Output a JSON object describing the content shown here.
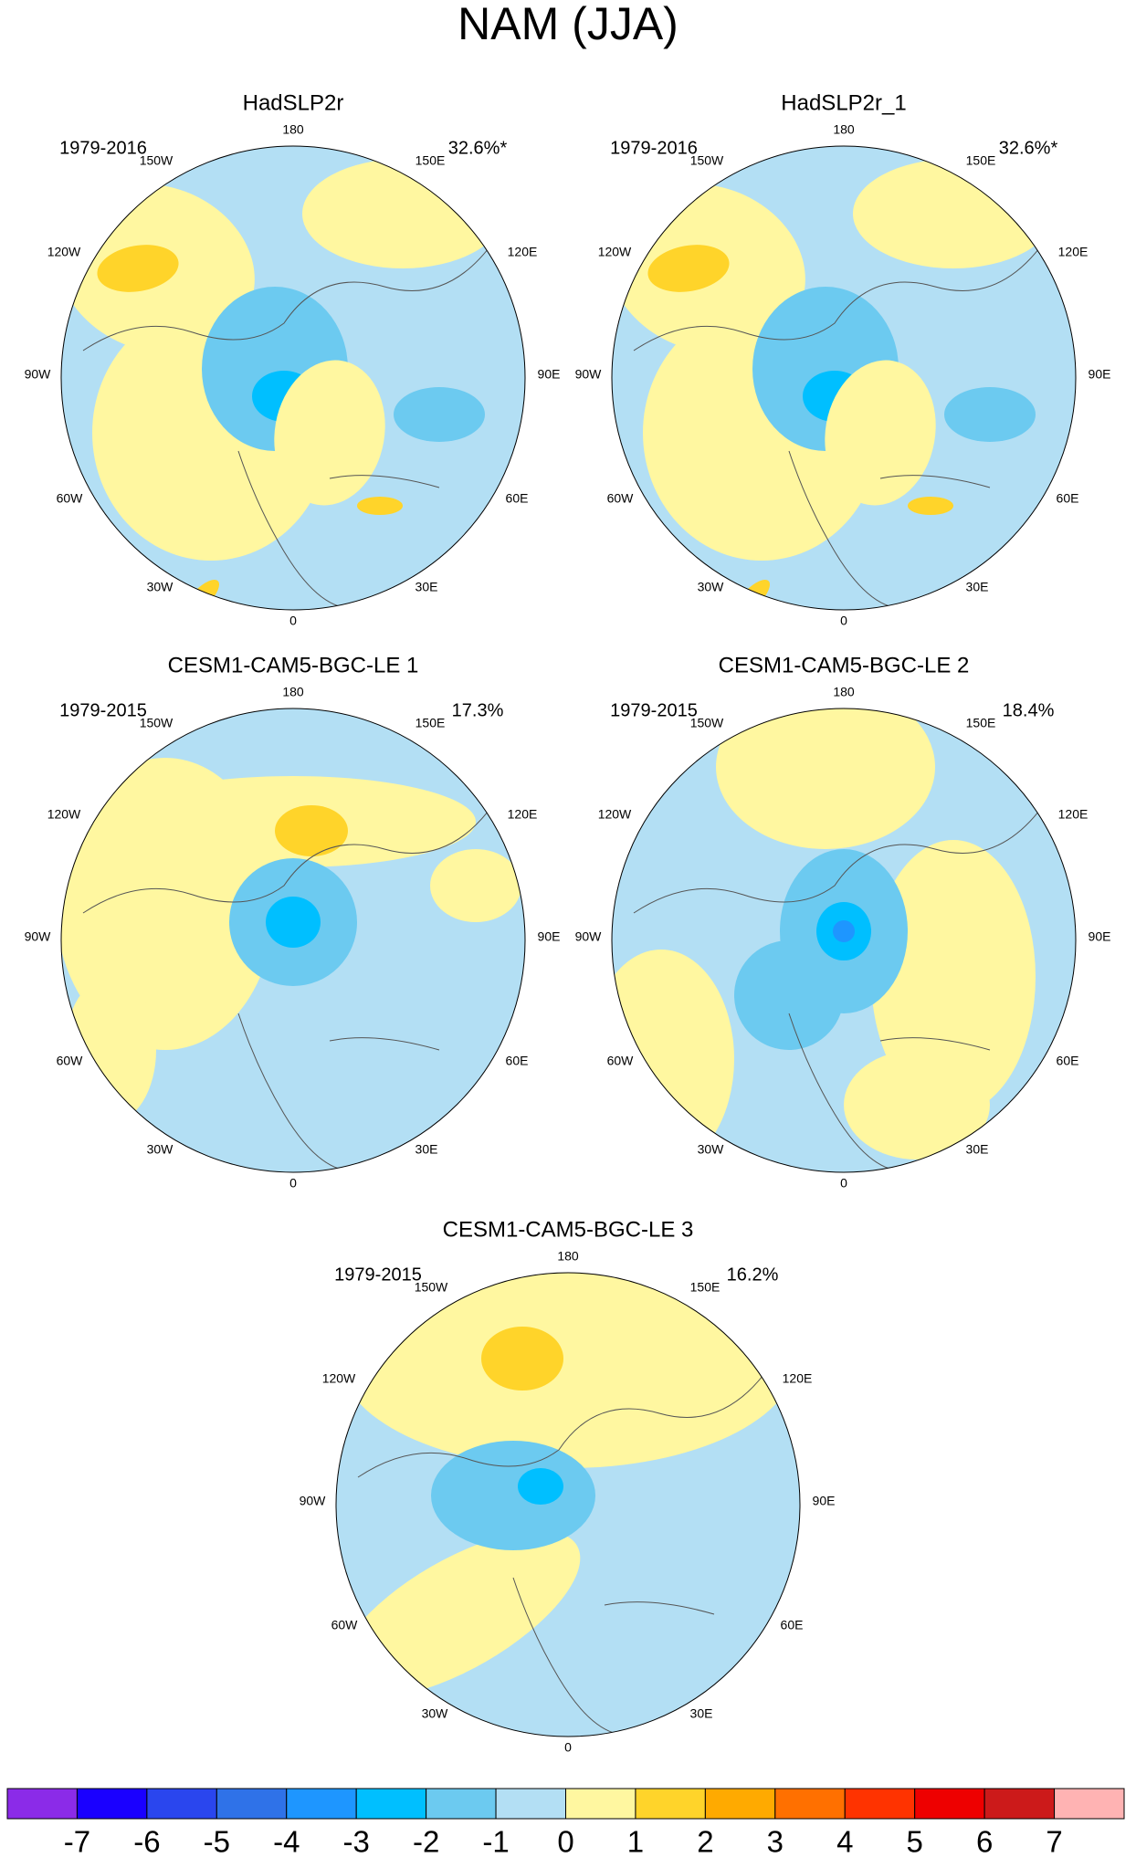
{
  "header": {
    "title": "NAM (JJA)"
  },
  "longitude_labels": [
    "180",
    "150E",
    "120E",
    "90E",
    "60E",
    "30E",
    "0",
    "30W",
    "60W",
    "90W",
    "120W",
    "150W"
  ],
  "panels": [
    {
      "title": "HadSLP2r",
      "period": "1979-2016",
      "variance": "32.6%*"
    },
    {
      "title": "HadSLP2r_1",
      "period": "1979-2016",
      "variance": "32.6%*"
    },
    {
      "title": "CESM1-CAM5-BGC-LE 1",
      "period": "1979-2015",
      "variance": "17.3%"
    },
    {
      "title": "CESM1-CAM5-BGC-LE 2",
      "period": "1979-2015",
      "variance": "18.4%"
    },
    {
      "title": "CESM1-CAM5-BGC-LE 3",
      "period": "1979-2015",
      "variance": "16.2%"
    }
  ],
  "colorbar": {
    "colors": [
      "#8b2be8",
      "#1a00ff",
      "#2a46ee",
      "#2f72e8",
      "#1e96ff",
      "#00bfff",
      "#6ccaf0",
      "#b3dff4",
      "#fff7a0",
      "#ffd42a",
      "#ffaa00",
      "#ff7000",
      "#ff3300",
      "#ee0000",
      "#cc1a1a",
      "#ffb3b3"
    ],
    "labels": [
      -7,
      -6,
      -5,
      -4,
      -3,
      -2,
      -1,
      0,
      1,
      2,
      3,
      4,
      5,
      6,
      7
    ]
  }
}
